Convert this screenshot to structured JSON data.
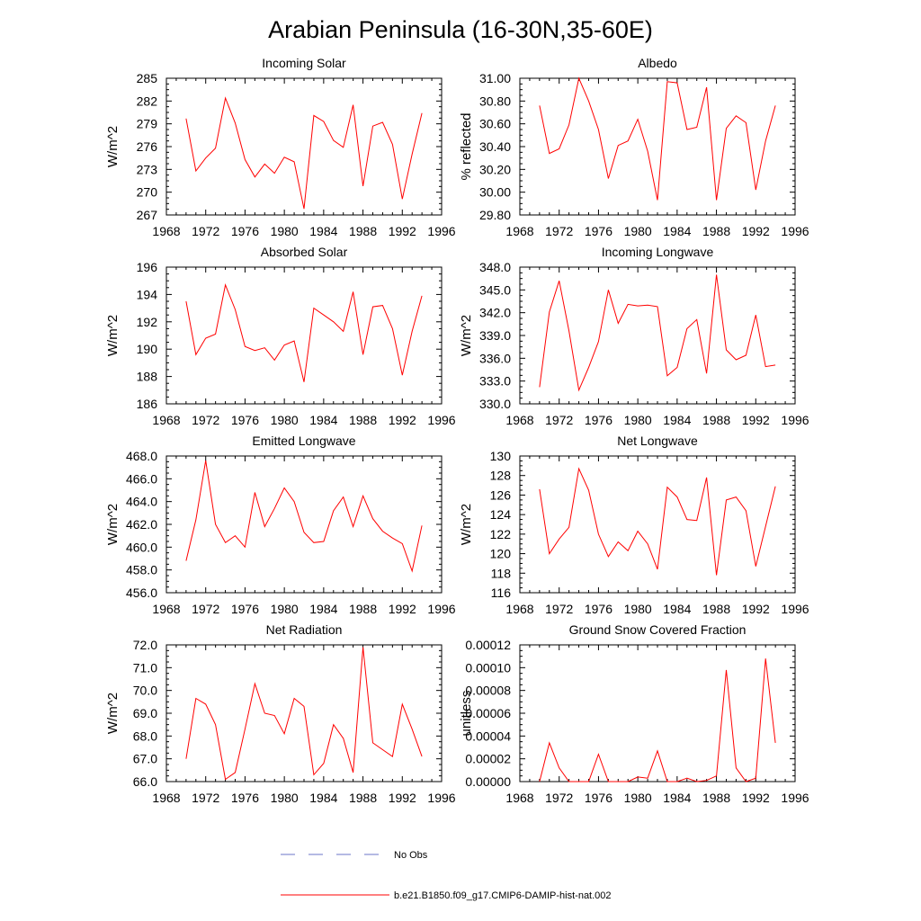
{
  "title": "Arabian Peninsula (16-30N,35-60E)",
  "colors": {
    "model": "#ff0000",
    "obs": "#6b74c9",
    "axis": "#000000"
  },
  "legend": [
    {
      "label": "No Obs",
      "style": "dashed",
      "color": "#6b74c9"
    },
    {
      "label": "b.e21.B1850.f09_g17.CMIP6-DAMIP-hist-nat.002",
      "style": "solid",
      "color": "#ff0000"
    }
  ],
  "chart_data": [
    {
      "type": "line",
      "title": "Incoming Solar",
      "ylabel": "W/m^2",
      "xlim": [
        1968,
        1996
      ],
      "ylim": [
        267,
        285
      ],
      "xticks": [
        1968,
        1972,
        1976,
        1980,
        1984,
        1988,
        1992,
        1996
      ],
      "yticks": [
        267,
        270,
        273,
        276,
        279,
        282,
        285
      ],
      "ytick_labels": [
        "267",
        "270",
        "273",
        "276",
        "279",
        "282",
        "285"
      ],
      "series": [
        {
          "name": "b.e21.B1850.f09_g17.CMIP6-DAMIP-hist-nat.002",
          "x": [
            1970,
            1971,
            1972,
            1973,
            1974,
            1975,
            1976,
            1977,
            1978,
            1979,
            1980,
            1981,
            1982,
            1983,
            1984,
            1985,
            1986,
            1987,
            1988,
            1989,
            1990,
            1991,
            1992,
            1993,
            1994
          ],
          "y": [
            279.7,
            272.8,
            274.5,
            275.8,
            282.4,
            279.1,
            274.3,
            272.0,
            273.7,
            272.5,
            274.6,
            274.0,
            267.8,
            280.1,
            279.3,
            276.8,
            275.9,
            281.5,
            270.8,
            278.7,
            279.2,
            276.3,
            269.1,
            275.0,
            280.4
          ]
        }
      ]
    },
    {
      "type": "line",
      "title": "Albedo",
      "ylabel": "% reflected",
      "xlim": [
        1968,
        1996
      ],
      "ylim": [
        29.8,
        31.0
      ],
      "xticks": [
        1968,
        1972,
        1976,
        1980,
        1984,
        1988,
        1992,
        1996
      ],
      "yticks": [
        29.8,
        30.0,
        30.2,
        30.4,
        30.6,
        30.8,
        31.0
      ],
      "ytick_labels": [
        "29.80",
        "30.00",
        "30.20",
        "30.40",
        "30.60",
        "30.80",
        "31.00"
      ],
      "series": [
        {
          "name": "b.e21.B1850.f09_g17.CMIP6-DAMIP-hist-nat.002",
          "x": [
            1970,
            1971,
            1972,
            1973,
            1974,
            1975,
            1976,
            1977,
            1978,
            1979,
            1980,
            1981,
            1982,
            1983,
            1984,
            1985,
            1986,
            1987,
            1988,
            1989,
            1990,
            1991,
            1992,
            1993,
            1994
          ],
          "y": [
            30.76,
            30.34,
            30.38,
            30.59,
            31.0,
            30.8,
            30.55,
            30.12,
            30.41,
            30.45,
            30.64,
            30.36,
            29.93,
            30.97,
            30.96,
            30.55,
            30.57,
            30.92,
            29.93,
            30.56,
            30.67,
            30.61,
            30.02,
            30.45,
            30.76
          ]
        }
      ]
    },
    {
      "type": "line",
      "title": "Absorbed Solar",
      "ylabel": "W/m^2",
      "xlim": [
        1968,
        1996
      ],
      "ylim": [
        186,
        196
      ],
      "xticks": [
        1968,
        1972,
        1976,
        1980,
        1984,
        1988,
        1992,
        1996
      ],
      "yticks": [
        186,
        188,
        190,
        192,
        194,
        196
      ],
      "ytick_labels": [
        "186",
        "188",
        "190",
        "192",
        "194",
        "196"
      ],
      "series": [
        {
          "name": "b.e21.B1850.f09_g17.CMIP6-DAMIP-hist-nat.002",
          "x": [
            1970,
            1971,
            1972,
            1973,
            1974,
            1975,
            1976,
            1977,
            1978,
            1979,
            1980,
            1981,
            1982,
            1983,
            1984,
            1985,
            1986,
            1987,
            1988,
            1989,
            1990,
            1991,
            1992,
            1993,
            1994
          ],
          "y": [
            193.5,
            189.6,
            190.8,
            191.1,
            194.7,
            192.9,
            190.2,
            189.9,
            190.1,
            189.2,
            190.3,
            190.6,
            187.6,
            193.0,
            192.5,
            192.0,
            191.3,
            194.2,
            189.6,
            193.1,
            193.2,
            191.5,
            188.1,
            191.3,
            193.9
          ]
        }
      ]
    },
    {
      "type": "line",
      "title": "Incoming Longwave",
      "ylabel": "W/m^2",
      "xlim": [
        1968,
        1996
      ],
      "ylim": [
        330,
        348
      ],
      "xticks": [
        1968,
        1972,
        1976,
        1980,
        1984,
        1988,
        1992,
        1996
      ],
      "yticks": [
        330,
        333,
        336,
        339,
        342,
        345,
        348
      ],
      "ytick_labels": [
        "330.0",
        "333.0",
        "336.0",
        "339.0",
        "342.0",
        "345.0",
        "348.0"
      ],
      "series": [
        {
          "name": "b.e21.B1850.f09_g17.CMIP6-DAMIP-hist-nat.002",
          "x": [
            1970,
            1971,
            1972,
            1973,
            1974,
            1975,
            1976,
            1977,
            1978,
            1979,
            1980,
            1981,
            1982,
            1983,
            1984,
            1985,
            1986,
            1987,
            1988,
            1989,
            1990,
            1991,
            1992,
            1993,
            1994
          ],
          "y": [
            332.2,
            342.1,
            346.2,
            339.6,
            331.8,
            334.8,
            338.2,
            345.0,
            340.6,
            343.1,
            342.9,
            343.0,
            342.8,
            333.7,
            334.8,
            339.9,
            341.1,
            334.0,
            347.0,
            337.1,
            335.8,
            336.4,
            341.7,
            334.9,
            335.1
          ]
        }
      ]
    },
    {
      "type": "line",
      "title": "Emitted Longwave",
      "ylabel": "W/m^2",
      "xlim": [
        1968,
        1996
      ],
      "ylim": [
        456,
        468
      ],
      "xticks": [
        1968,
        1972,
        1976,
        1980,
        1984,
        1988,
        1992,
        1996
      ],
      "yticks": [
        456,
        458,
        460,
        462,
        464,
        466,
        468
      ],
      "ytick_labels": [
        "456.0",
        "458.0",
        "460.0",
        "462.0",
        "464.0",
        "466.0",
        "468.0"
      ],
      "series": [
        {
          "name": "b.e21.B1850.f09_g17.CMIP6-DAMIP-hist-nat.002",
          "x": [
            1970,
            1971,
            1972,
            1973,
            1974,
            1975,
            1976,
            1977,
            1978,
            1979,
            1980,
            1981,
            1982,
            1983,
            1984,
            1985,
            1986,
            1987,
            1988,
            1989,
            1990,
            1991,
            1992,
            1993,
            1994
          ],
          "y": [
            458.8,
            462.4,
            467.6,
            462.0,
            460.4,
            461.0,
            460.0,
            464.8,
            461.8,
            463.4,
            465.2,
            464.0,
            461.3,
            460.4,
            460.5,
            463.2,
            464.4,
            461.8,
            464.5,
            462.5,
            461.4,
            460.8,
            460.3,
            457.9,
            461.9
          ]
        }
      ]
    },
    {
      "type": "line",
      "title": "Net Longwave",
      "ylabel": "W/m^2",
      "xlim": [
        1968,
        1996
      ],
      "ylim": [
        116,
        130
      ],
      "xticks": [
        1968,
        1972,
        1976,
        1980,
        1984,
        1988,
        1992,
        1996
      ],
      "yticks": [
        116,
        118,
        120,
        122,
        124,
        126,
        128,
        130
      ],
      "ytick_labels": [
        "116",
        "118",
        "120",
        "122",
        "124",
        "126",
        "128",
        "130"
      ],
      "series": [
        {
          "name": "b.e21.B1850.f09_g17.CMIP6-DAMIP-hist-nat.002",
          "x": [
            1970,
            1971,
            1972,
            1973,
            1974,
            1975,
            1976,
            1977,
            1978,
            1979,
            1980,
            1981,
            1982,
            1983,
            1984,
            1985,
            1986,
            1987,
            1988,
            1989,
            1990,
            1991,
            1992,
            1993,
            1994
          ],
          "y": [
            126.6,
            120.0,
            121.5,
            122.7,
            128.7,
            126.5,
            122.0,
            119.7,
            121.2,
            120.3,
            122.3,
            121.0,
            118.4,
            126.8,
            125.8,
            123.5,
            123.4,
            127.8,
            117.8,
            125.5,
            125.8,
            124.4,
            118.7,
            122.8,
            126.9
          ]
        }
      ]
    },
    {
      "type": "line",
      "title": "Net Radiation",
      "ylabel": "W/m^2",
      "xlim": [
        1968,
        1996
      ],
      "ylim": [
        66,
        72
      ],
      "xticks": [
        1968,
        1972,
        1976,
        1980,
        1984,
        1988,
        1992,
        1996
      ],
      "yticks": [
        66,
        67,
        68,
        69,
        70,
        71,
        72
      ],
      "ytick_labels": [
        "66.0",
        "67.0",
        "68.0",
        "69.0",
        "70.0",
        "71.0",
        "72.0"
      ],
      "series": [
        {
          "name": "b.e21.B1850.f09_g17.CMIP6-DAMIP-hist-nat.002",
          "x": [
            1970,
            1971,
            1972,
            1973,
            1974,
            1975,
            1976,
            1977,
            1978,
            1979,
            1980,
            1981,
            1982,
            1983,
            1984,
            1985,
            1986,
            1987,
            1988,
            1989,
            1990,
            1991,
            1992,
            1993,
            1994
          ],
          "y": [
            67.0,
            69.65,
            69.4,
            68.5,
            66.1,
            66.4,
            68.3,
            70.3,
            69.0,
            68.9,
            68.1,
            69.65,
            69.3,
            66.3,
            66.8,
            68.5,
            67.9,
            66.4,
            71.9,
            67.7,
            67.4,
            67.1,
            69.4,
            68.3,
            67.1
          ]
        }
      ]
    },
    {
      "type": "line",
      "title": "Ground Snow Covered Fraction",
      "ylabel": "unitless",
      "xlim": [
        1968,
        1996
      ],
      "ylim": [
        0,
        0.00012
      ],
      "xticks": [
        1968,
        1972,
        1976,
        1980,
        1984,
        1988,
        1992,
        1996
      ],
      "yticks": [
        0,
        2e-05,
        4e-05,
        6e-05,
        8e-05,
        0.0001,
        0.00012
      ],
      "ytick_labels": [
        "0.00000",
        "0.00002",
        "0.00004",
        "0.00006",
        "0.00008",
        "0.00010",
        "0.00012"
      ],
      "series": [
        {
          "name": "b.e21.B1850.f09_g17.CMIP6-DAMIP-hist-nat.002",
          "x": [
            1970,
            1971,
            1972,
            1973,
            1974,
            1975,
            1976,
            1977,
            1978,
            1979,
            1980,
            1981,
            1982,
            1983,
            1984,
            1985,
            1986,
            1987,
            1988,
            1989,
            1990,
            1991,
            1992,
            1993,
            1994
          ],
          "y": [
            0,
            3.4e-05,
            1.2e-05,
            0,
            0,
            0,
            2.4e-05,
            0,
            0,
            0,
            4e-06,
            3e-06,
            2.7e-05,
            0,
            0,
            3e-06,
            0,
            1e-06,
            5e-06,
            9.8e-05,
            1.2e-05,
            0,
            3e-06,
            0.000108,
            3.4e-05
          ]
        }
      ]
    }
  ]
}
